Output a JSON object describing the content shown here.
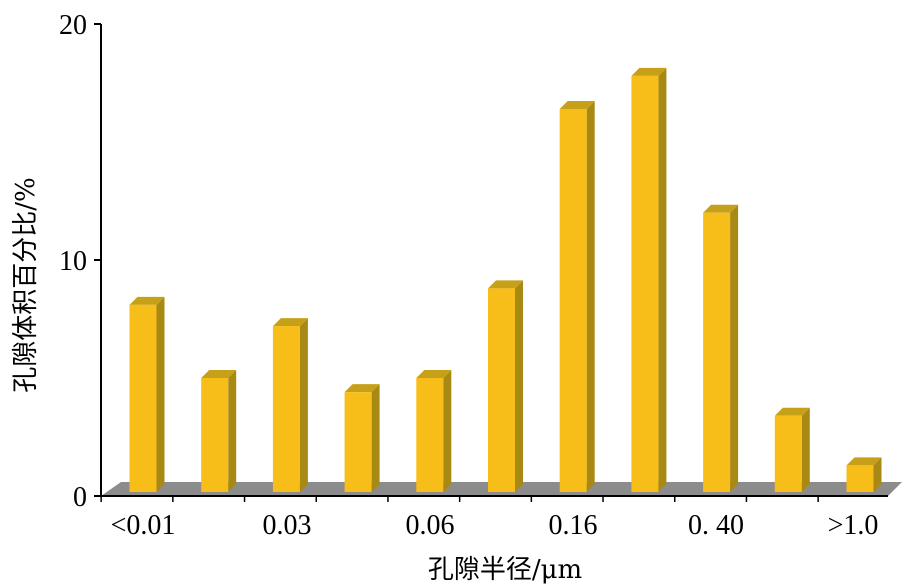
{
  "chart_data": {
    "type": "bar",
    "categories": [
      "<0.01",
      "",
      "0.03",
      "",
      "0.06",
      "",
      "0.16",
      "",
      "0. 40",
      "",
      ">1.0"
    ],
    "values": [
      8.1,
      5.0,
      7.2,
      4.4,
      5.0,
      8.8,
      16.4,
      17.8,
      12.0,
      3.4,
      1.3
    ],
    "xlabel": "孔隙半径/μm",
    "ylabel": "孔隙体积百分比/%",
    "ylim": [
      0,
      20
    ],
    "yticks": [
      0,
      10,
      20
    ],
    "grid": false,
    "style": "3d-bars",
    "bar_color": "#F7BD19",
    "bar_side_color": "#A88914",
    "bar_top_color": "#C7A01A",
    "floor_color": "#8C8C8C"
  }
}
